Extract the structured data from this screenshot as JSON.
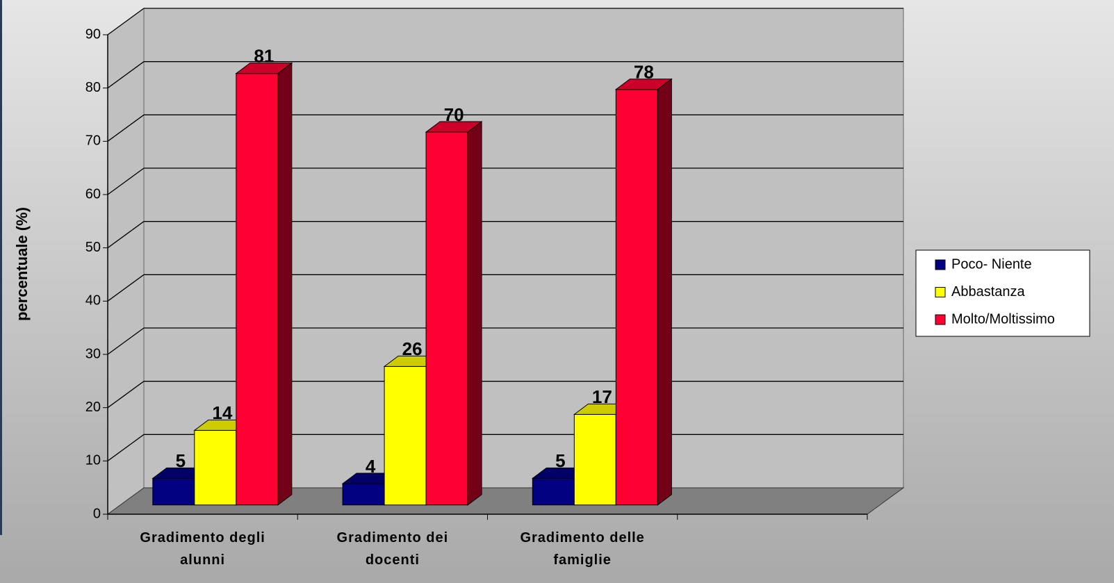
{
  "chart_data": {
    "type": "bar3d",
    "y_label": "percentuale (%)",
    "categories": [
      "Gradimento degli alunni",
      "Gradimento dei docenti",
      "Gradimento delle famiglie",
      null
    ],
    "series": [
      {
        "name": "Poco- Niente",
        "color": "#000080",
        "values": [
          5,
          4,
          5,
          null
        ]
      },
      {
        "name": "Abbastanza",
        "color": "#ffff00",
        "values": [
          14,
          26,
          17,
          null
        ]
      },
      {
        "name": "Molto/Moltissimo",
        "color": "#ff0033",
        "values": [
          81,
          70,
          78,
          null
        ]
      }
    ],
    "ylim": [
      0,
      90
    ],
    "yticks": [
      0,
      10,
      20,
      30,
      40,
      50,
      60,
      70,
      80,
      90
    ],
    "grid": true,
    "legend": "right"
  }
}
